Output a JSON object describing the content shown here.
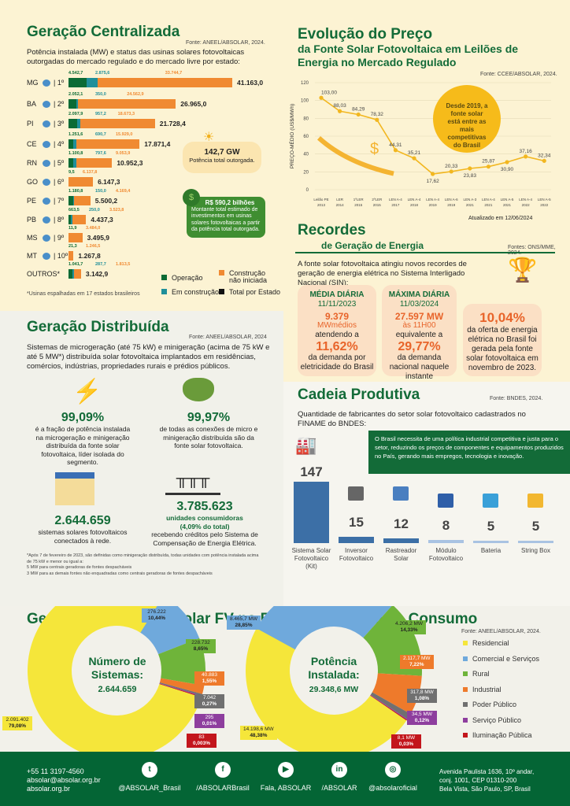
{
  "gc": {
    "title": "Geração Centralizada",
    "source": "Fonte: ANEEL/ABSOLAR, 2024.",
    "subtitle": "Potência instalada (MW) e status das usinas solares fotovoltaicas outorgadas do mercado regulado e do mercado livre por estado:",
    "rows": [
      {
        "state": "MG",
        "rank": "1º",
        "op": "4.542,7",
        "ec": "2.875,6",
        "ni": "33.744,7",
        "total": "41.163,0",
        "v": [
          4542.7,
          2875.6,
          33744.7
        ]
      },
      {
        "state": "BA",
        "rank": "2º",
        "op": "2.052,1",
        "ec": "350,0",
        "ni": "24.562,9",
        "total": "26.965,0",
        "v": [
          2052.1,
          350,
          24562.9
        ]
      },
      {
        "state": "PI",
        "rank": "3º",
        "op": "2.097,9",
        "ec": "957,2",
        "ni": "18.673,3",
        "total": "21.728,4",
        "v": [
          2097.9,
          957.2,
          18673.3
        ]
      },
      {
        "state": "CE",
        "rank": "4º",
        "op": "1.251,6",
        "ec": "690,7",
        "ni": "15.929,0",
        "total": "17.871,4",
        "v": [
          1251.6,
          690.7,
          15929
        ]
      },
      {
        "state": "RN",
        "rank": "5º",
        "op": "1.100,8",
        "ec": "797,6",
        "ni": "9.053,9",
        "total": "10.952,3",
        "v": [
          1100.8,
          797.6,
          9053.9
        ]
      },
      {
        "state": "GO",
        "rank": "6º",
        "op": "9,5",
        "ec": "",
        "ni": "6.137,8",
        "total": "6.147,3",
        "v": [
          9.5,
          0,
          6137.8
        ]
      },
      {
        "state": "PE",
        "rank": "7º",
        "op": "1.180,8",
        "ec": "150,0",
        "ni": "4.169,4",
        "total": "5.500,2",
        "v": [
          1180.8,
          150,
          4169.4
        ]
      },
      {
        "state": "PB",
        "rank": "8º",
        "op": "663,5",
        "ec": "250,0",
        "ni": "3.523,8",
        "total": "4.437,3",
        "v": [
          663.5,
          250,
          3523.8
        ]
      },
      {
        "state": "MS",
        "rank": "9º",
        "op": "11,9",
        "ec": "",
        "ni": "3.484,0",
        "total": "3.495,9",
        "v": [
          11.9,
          0,
          3484
        ]
      },
      {
        "state": "MT",
        "rank": "10º",
        "op": "21,3",
        "ec": "",
        "ni": "1.246,5",
        "total": "1.267,8",
        "v": [
          21.3,
          0,
          1246.5
        ]
      },
      {
        "state": "OUTROS*",
        "rank": "",
        "op": "1.041,7",
        "ec": "287,7",
        "ni": "1.813,5",
        "total": "3.142,9",
        "v": [
          1041.7,
          287.7,
          1813.5
        ]
      }
    ],
    "gw_value": "142,7 GW",
    "gw_label": "Potência total outorgada.",
    "inv_value": "R$ 590,2 bilhões",
    "inv_label": "Montante total estimado de investimentos em usinas solares fotovoltaicas a partir da potência total outorgada.",
    "legend": {
      "op": "Operação",
      "ec": "Em construção",
      "ni": "Construção não iniciada",
      "total": "Total por Estado"
    },
    "note": "*Usinas espalhadas em 17 estados brasileiros",
    "colors": {
      "op": "#0b6b35",
      "ec": "#1f8f9a",
      "ni": "#f08a32"
    }
  },
  "preco": {
    "title1": "Evolução do Preço",
    "title2": "da Fonte Solar Fotovoltaica em Leilões de Energia no Mercado Regulado",
    "source": "Fonte: CCEE/ABSOLAR, 2024.",
    "badge": "Desde 2019, a fonte solar está entre as mais competitivas do Brasil",
    "updated": "Atualizado em 12/06/2024"
  },
  "chart_data": {
    "type": "line",
    "ylabel": "PREÇO-MÉDIO (US$/MWh)",
    "ylim": [
      0,
      120
    ],
    "yticks": [
      0,
      20,
      40,
      60,
      80,
      100,
      120
    ],
    "grid": true,
    "categories": [
      [
        "Leilão PE",
        "2013"
      ],
      [
        "LER",
        "2014"
      ],
      [
        "1ºLER",
        "2015"
      ],
      [
        "2ºLER",
        "2015"
      ],
      [
        "LEN A-4",
        "2017"
      ],
      [
        "LEN A-4",
        "2018"
      ],
      [
        "LEN A-4",
        "2019"
      ],
      [
        "LEN A-6",
        "2019"
      ],
      [
        "LEN A-3",
        "2021"
      ],
      [
        "LEN A-4",
        "2021"
      ],
      [
        "LEN A-5",
        "2021"
      ],
      [
        "LEN A-4",
        "2022"
      ],
      [
        "LEN A-5",
        "2022"
      ]
    ],
    "values": [
      103.0,
      88.03,
      84.29,
      78.32,
      44.31,
      35.21,
      17.62,
      20.33,
      23.83,
      25.87,
      30.9,
      37.16,
      32.34
    ],
    "labels": [
      "103,00",
      "88,03",
      "84,29",
      "78,32",
      "44,31",
      "35,21",
      "17,62",
      "20,33",
      "23,83",
      "25,87",
      "30,90",
      "37,16",
      "32,34"
    ],
    "color": "#f2b720"
  },
  "rec": {
    "title1": "Recordes",
    "title2": "de Geração de Energia",
    "source": "Fontes: ONS/MME, 2024.",
    "intro": "A fonte solar fotovoltaica atingiu novos recordes de geração de energia elétrica no Sistema Interligado Nacional (SIN):",
    "c1": {
      "h": "MÉDIA DIÁRIA",
      "date": "11/11/2023",
      "v": "9.379",
      "u": "MWmédios",
      "t1": "atendendo a",
      "p": "11,62%",
      "t2": "da demanda por eletricidade do Brasil"
    },
    "c2": {
      "h": "MÁXIMA DIÁRIA",
      "date": "11/03/2024",
      "v": "27.597 MW",
      "u": "às 11H00",
      "t1": "equivalente a",
      "p": "29,77%",
      "t2": "da demanda nacional naquele instante"
    },
    "c3": {
      "p": "10,04%",
      "t": "da oferta de energia elétrica no Brasil foi gerada pela fonte solar fotovoltaica em novembro de 2023."
    }
  },
  "gd": {
    "title": "Geração Distribuída",
    "source": "Fonte: ANEEL/ABSOLAR, 2024",
    "intro": "Sistemas de microgeração (até 75 kW) e minigeração (acima de 75 kW e até  5 MW*) distribuída solar fotovoltaica implantados em residências, comércios, indústrias, propriedades rurais e prédios públicos.",
    "i1": {
      "v": "99,09%",
      "t": "é a fração de potência instalada na microgeração e minigeração distribuída da fonte solar fotovoltaica, líder isolada do segmento."
    },
    "i2": {
      "v": "99,97%",
      "t": "de todas as conexões de micro e minigeração distribuída são da fonte solar fotovoltaica."
    },
    "i3": {
      "v": "2.644.659",
      "t": "sistemas solares fotovoltaicos conectados à rede."
    },
    "i4": {
      "v": "3.785.623",
      "s1": "unidades consumidoras",
      "s2": "(4,09% do total)",
      "t": "recebendo créditos pelo Sistema de Compensação de Energia Elétrica."
    },
    "note": [
      "*Após 7 de fevereiro de 2023, são definidas como minigeração distribuída, todas unidades com potência instalada acima de 75 kW e menor ou igual a:",
      "5 MW para centrais geradoras de fontes despacháveis",
      "3 MW para as demais fontes não enquadradas como centrais geradoras de fontes despacháveis"
    ]
  },
  "cadeia": {
    "title": "Cadeia Produtiva",
    "source": "Fonte: BNDES, 2024.",
    "intro": "Quantidade de fabricantes do setor solar fotovoltaico cadastrados no FINAME do BNDES:",
    "box": "O Brasil necessita de uma política industrial competitiva e justa para o setor, reduzindo os preços de componentes e equipamentos produzidos no País, gerando mais empregos, tecnologia e inovação.",
    "items": [
      {
        "label": "Sistema Solar Fotovoltaico (Kit)",
        "value": 147
      },
      {
        "label": "Inversor Fotovoltaico",
        "value": 15
      },
      {
        "label": "Rastreador Solar",
        "value": 12
      },
      {
        "label": "Módulo Fotovoltaico",
        "value": 8
      },
      {
        "label": "Bateria",
        "value": 5
      },
      {
        "label": "String Box",
        "value": 5
      }
    ]
  },
  "classe": {
    "title": "Geração Distribuída Solar FV no Brasil por Classe de Consumo",
    "source": "Fonte: ANEEL/ABSOLAR, 2024.",
    "categories": [
      "Residencial",
      "Comercial e Serviços",
      "Rural",
      "Industrial",
      "Poder Público",
      "Serviço Público",
      "Iluminação Pública"
    ],
    "colors": [
      "#f5e63a",
      "#6fa9dc",
      "#6fb43a",
      "#ee7a2b",
      "#707070",
      "#8e3e9e",
      "#c3161c"
    ],
    "sistemas": {
      "t1": "Número de",
      "t2": "Sistemas:",
      "total": "2.644.659",
      "values": [
        "2.091.402",
        "276.222",
        "228.732",
        "40.883",
        "7.042",
        "295",
        "83"
      ],
      "pct": [
        "79,08%",
        "10,44%",
        "8,65%",
        "1,55%",
        "0,27%",
        "0,01%",
        "0,003%"
      ],
      "share": [
        79.08,
        10.44,
        8.65,
        1.55,
        0.27,
        0.01,
        0.003
      ]
    },
    "potencia": {
      "t1": "Potência",
      "t2": "Instalada:",
      "total": "29.348,6 MW",
      "values": [
        "14.198,6 MW",
        "8.465,7 MW",
        "4.206,2 MW",
        "2.117,7 MW",
        "317,8 MW",
        "34,5 MW",
        "8,1 MW"
      ],
      "pct": [
        "48,38%",
        "28,85%",
        "14,33%",
        "7,22%",
        "1,08%",
        "0,12%",
        "0,03%"
      ],
      "share": [
        48.38,
        28.85,
        14.33,
        7.22,
        1.08,
        0.12,
        0.03
      ]
    }
  },
  "footer": {
    "phone": "+55 11 3197-4560",
    "email": "absolar@absolar.org.br",
    "site": "absolar.org.br",
    "social": [
      {
        "icon": "twitter-icon",
        "g": "t",
        "label": "@ABSOLAR_Brasil"
      },
      {
        "icon": "facebook-icon",
        "g": "f",
        "label": "/ABSOLARBrasil"
      },
      {
        "icon": "youtube-icon",
        "g": "▶",
        "label": "Fala, ABSOLAR"
      },
      {
        "icon": "linkedin-icon",
        "g": "in",
        "label": "/ABSOLAR"
      },
      {
        "icon": "instagram-icon",
        "g": "◎",
        "label": "@absolaroficial"
      }
    ],
    "addr": [
      "Avenida Paulista 1636, 10º andar,",
      "conj. 1001, CEP 01310-200",
      "Bela Vista, São Paulo, SP, Brasil"
    ]
  }
}
